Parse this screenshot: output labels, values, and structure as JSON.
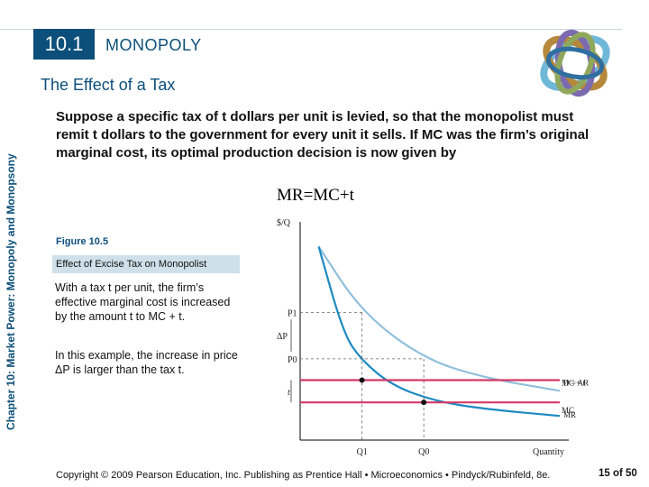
{
  "header": {
    "section_number": "10.1",
    "section_title": "MONOPOLY",
    "subtitle": "The Effect of a Tax"
  },
  "sidebar": {
    "chapter_label": "Chapter 10: Market Power: Monopoly and Monopsony"
  },
  "intro": {
    "text": "Suppose a specific tax of t dollars per unit is levied, so that the monopolist must remit t dollars to the government for every unit it sells. If MC was the firm’s original marginal cost, its optimal production decision is now given by"
  },
  "formula": {
    "text": "MR=MC+t"
  },
  "figure": {
    "number": "Figure 10.5",
    "title": "Effect of Excise Tax on Monopolist",
    "para1": "With a tax t per unit, the firm’s effective marginal cost is increased by the amount t to MC + t.",
    "para2": "In this example, the increase in price ΔP is larger than the tax t."
  },
  "chart_data": {
    "type": "line",
    "xlabel": "Quantity",
    "ylabel": "$/Q",
    "x_ticks": [
      "Q1",
      "Q0"
    ],
    "y_ticks": [
      "P1",
      "P0"
    ],
    "annotations": [
      "ΔP",
      "t"
    ],
    "series": [
      {
        "name": "D = AR",
        "color": "#8fbfdc",
        "values": [
          [
            0.3,
            10
          ],
          [
            1,
            6.6
          ],
          [
            2,
            4.2
          ],
          [
            3,
            3.2
          ],
          [
            4.2,
            2.55
          ]
        ]
      },
      {
        "name": "MR",
        "color": "#1d8ac2",
        "values": [
          [
            0.3,
            10
          ],
          [
            0.7,
            5.5
          ],
          [
            1,
            4.1
          ],
          [
            1.5,
            2.8
          ],
          [
            2.2,
            2.0
          ],
          [
            3,
            1.6
          ],
          [
            4.2,
            1.25
          ]
        ]
      },
      {
        "name": "MC + t",
        "color": "#d33a67",
        "values": [
          [
            0,
            3.1
          ],
          [
            4.2,
            3.1
          ]
        ]
      },
      {
        "name": "MC",
        "color": "#d33a67",
        "values": [
          [
            0,
            1.95
          ],
          [
            4.2,
            1.95
          ]
        ]
      }
    ],
    "points": [
      {
        "x": 1,
        "y": 3.1,
        "label": "Q1"
      },
      {
        "x": 2,
        "y": 1.95,
        "label": "Q0"
      }
    ],
    "prices": {
      "P1": 6.6,
      "P0": 4.2
    },
    "xlim": [
      0,
      4.2
    ],
    "ylim": [
      0,
      11
    ]
  },
  "footer": {
    "copyright": "Copyright © 2009 Pearson Education, Inc. Publishing as Prentice Hall • Microeconomics • Pindyck/Rubinfeld, 8e.",
    "page": "15 of 50"
  }
}
